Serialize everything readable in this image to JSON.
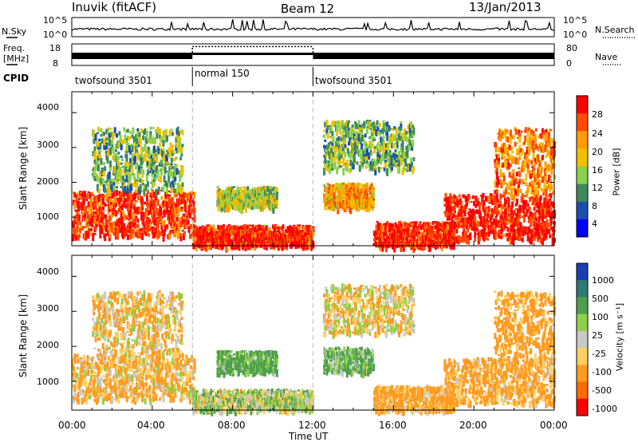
{
  "header": {
    "station": "Inuvik (fitACF)",
    "beam": "Beam 12",
    "date": "13/Jan/2013"
  },
  "noise_panel": {
    "left_label": "N.Sky",
    "left_ticks": [
      "10^5",
      "10^0"
    ],
    "right_label": "N.Search",
    "right_ticks": [
      "10^5",
      "10^0"
    ]
  },
  "freq_panel": {
    "left_label_line1": "Freq.",
    "left_label_line2": "[MHz]",
    "left_ticks": [
      "18",
      "8"
    ],
    "right_label": "Nave",
    "right_ticks": [
      "80",
      "0"
    ]
  },
  "cpid": {
    "label": "CPID",
    "segments": [
      {
        "name": "twofsound 3501",
        "start_h": 0,
        "end_h": 6
      },
      {
        "name": "normal 150",
        "start_h": 6,
        "end_h": 12
      },
      {
        "name": "twofsound 3501",
        "start_h": 12,
        "end_h": 24
      }
    ]
  },
  "power_panel": {
    "ylabel": "Slant Range [km]",
    "colorbar_label": "Power [dB]",
    "colorbar_ticks": [
      "28",
      "24",
      "20",
      "16",
      "12",
      "8",
      "4"
    ],
    "colorbar_colors": [
      "#ff0000",
      "#ff4a00",
      "#ff9a00",
      "#f0c000",
      "#8ad14c",
      "#3d8a5c",
      "#1a4fb0",
      "#0000ff"
    ]
  },
  "velocity_panel": {
    "ylabel": "Slant Range [km]",
    "colorbar_label": "Velocity [m s⁻¹]",
    "colorbar_ticks": [
      "1000",
      "500",
      "100",
      "25",
      "-25",
      "-100",
      "-500",
      "-1000"
    ],
    "colorbar_colors": [
      "#1a3fb0",
      "#2f7a72",
      "#4ea04c",
      "#8fd04a",
      "#c8c8c8",
      "#ffd060",
      "#ff9a20",
      "#ff6a00",
      "#ff0000"
    ]
  },
  "x_axis": {
    "label": "Time UT",
    "ticks": [
      "00:00",
      "04:00",
      "08:00",
      "12:00",
      "16:00",
      "20:00",
      "00:00"
    ]
  },
  "chart_data": {
    "type": "heatmap",
    "x_unit": "hours UT",
    "xlim": [
      0,
      24
    ],
    "ylim_km": [
      180,
      4600
    ],
    "y_ticks": [
      1000,
      2000,
      3000,
      4000
    ],
    "power_db_range": [
      0,
      30
    ],
    "velocity_range": [
      -1000,
      1000
    ],
    "regions": [
      {
        "start_h": 0.0,
        "end_h": 6.1,
        "range_lo_km": 500,
        "range_hi_km": 1800,
        "power_db": 26,
        "velocity": -100
      },
      {
        "start_h": 6.0,
        "end_h": 12.0,
        "range_lo_km": 200,
        "range_hi_km": 800,
        "power_db": 27,
        "velocity": 30
      },
      {
        "start_h": 7.2,
        "end_h": 10.2,
        "range_lo_km": 1300,
        "range_hi_km": 1900,
        "power_db": 14,
        "velocity": 150
      },
      {
        "start_h": 12.5,
        "end_h": 15.0,
        "range_lo_km": 1300,
        "range_hi_km": 2000,
        "power_db": 20,
        "velocity": 120
      },
      {
        "start_h": 15.0,
        "end_h": 19.0,
        "range_lo_km": 200,
        "range_hi_km": 900,
        "power_db": 27,
        "velocity": -150
      },
      {
        "start_h": 18.5,
        "end_h": 24.0,
        "range_lo_km": 400,
        "range_hi_km": 1700,
        "power_db": 28,
        "velocity": -150
      },
      {
        "start_h": 21.0,
        "end_h": 24.0,
        "range_lo_km": 1700,
        "range_hi_km": 3600,
        "power_db": 22,
        "velocity": -200
      },
      {
        "start_h": 1.0,
        "end_h": 5.5,
        "range_lo_km": 1800,
        "range_hi_km": 3600,
        "power_db": 12,
        "velocity": -80
      },
      {
        "start_h": 12.5,
        "end_h": 17.0,
        "range_lo_km": 2400,
        "range_hi_km": 3800,
        "power_db": 12,
        "velocity": -50
      }
    ],
    "noise_series": [
      {
        "name": "N.Sky",
        "approx_level": "10^2"
      },
      {
        "name": "N.Search",
        "approx_level": "10^2"
      }
    ],
    "freq_mhz": [
      {
        "start_h": 0,
        "end_h": 6,
        "value": 10.5
      },
      {
        "start_h": 6,
        "end_h": 12,
        "value": 10.5
      },
      {
        "start_h": 12,
        "end_h": 24,
        "value": 10.5
      }
    ],
    "nave": [
      {
        "start_h": 0,
        "end_h": 6,
        "value": 30
      },
      {
        "start_h": 6,
        "end_h": 12,
        "value": 70
      },
      {
        "start_h": 12,
        "end_h": 24,
        "value": 30
      }
    ]
  }
}
